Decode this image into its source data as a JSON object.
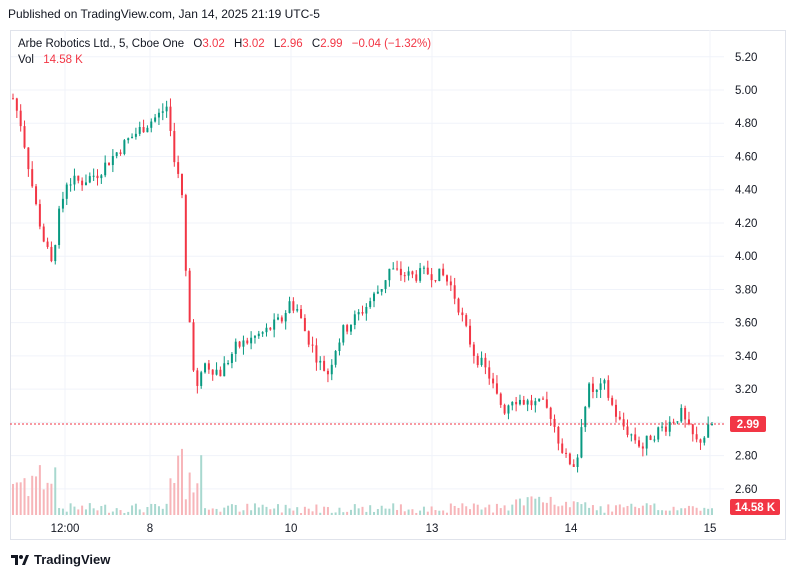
{
  "header": {
    "published": "Published on TradingView.com, Jan 14, 2025 21:19 UTC-5"
  },
  "legend": {
    "symbol": "Arbe Robotics Ltd., 5, Cboe One",
    "o_label": "O",
    "o_value": "3.02",
    "h_label": "H",
    "h_value": "3.02",
    "l_label": "L",
    "l_value": "2.96",
    "c_label": "C",
    "c_value": "2.99",
    "change": "−0.04 (−1.32%)",
    "vol_label": "Vol",
    "vol_value": "14.58 K"
  },
  "price_tag": "2.99",
  "volume_tag": "14.58 K",
  "footer": {
    "brand": "TradingView"
  },
  "colors": {
    "up": "#089981",
    "down": "#f23645",
    "vol_up": "#a8d8cf",
    "vol_down": "#f7b5b9",
    "grid": "#f0f3fa"
  },
  "chart_data": {
    "type": "candlestick",
    "y_ticks": [
      "5.20",
      "5.00",
      "4.80",
      "4.60",
      "4.40",
      "4.20",
      "4.00",
      "3.80",
      "3.60",
      "3.40",
      "3.20",
      "3.00",
      "2.80",
      "2.60"
    ],
    "ylim": [
      2.5,
      5.3
    ],
    "x_ticks": [
      "12:00",
      "8",
      "10",
      "13",
      "14",
      "15"
    ],
    "last_price": 2.99,
    "last_volume": "14.58 K",
    "price_path": [
      [
        0,
        4.95
      ],
      [
        2,
        4.8
      ],
      [
        4,
        4.55
      ],
      [
        6,
        4.3
      ],
      [
        8,
        4.1
      ],
      [
        10,
        3.95
      ],
      [
        12,
        4.25
      ],
      [
        14,
        4.45
      ],
      [
        18,
        4.45
      ],
      [
        22,
        4.5
      ],
      [
        26,
        4.6
      ],
      [
        30,
        4.7
      ],
      [
        34,
        4.78
      ],
      [
        38,
        4.85
      ],
      [
        40,
        4.9
      ],
      [
        42,
        4.6
      ],
      [
        44,
        4.35
      ],
      [
        45,
        3.9
      ],
      [
        46,
        3.6
      ],
      [
        47,
        3.35
      ],
      [
        48,
        3.2
      ],
      [
        50,
        3.35
      ],
      [
        54,
        3.3
      ],
      [
        58,
        3.45
      ],
      [
        62,
        3.5
      ],
      [
        66,
        3.55
      ],
      [
        70,
        3.62
      ],
      [
        72,
        3.72
      ],
      [
        74,
        3.68
      ],
      [
        76,
        3.55
      ],
      [
        78,
        3.45
      ],
      [
        80,
        3.35
      ],
      [
        82,
        3.3
      ],
      [
        84,
        3.45
      ],
      [
        86,
        3.55
      ],
      [
        88,
        3.6
      ],
      [
        92,
        3.7
      ],
      [
        96,
        3.82
      ],
      [
        98,
        3.92
      ],
      [
        100,
        3.9
      ],
      [
        104,
        3.88
      ],
      [
        108,
        3.9
      ],
      [
        112,
        3.88
      ],
      [
        114,
        3.82
      ],
      [
        116,
        3.7
      ],
      [
        118,
        3.55
      ],
      [
        120,
        3.42
      ],
      [
        122,
        3.35
      ],
      [
        124,
        3.28
      ],
      [
        126,
        3.15
      ],
      [
        128,
        3.08
      ],
      [
        130,
        3.15
      ],
      [
        134,
        3.12
      ],
      [
        138,
        3.1
      ],
      [
        140,
        3.05
      ],
      [
        142,
        2.9
      ],
      [
        144,
        2.78
      ],
      [
        146,
        2.75
      ],
      [
        147,
        2.8
      ],
      [
        148,
        3.0
      ],
      [
        150,
        3.2
      ],
      [
        152,
        3.18
      ],
      [
        154,
        3.22
      ],
      [
        156,
        3.1
      ],
      [
        158,
        3.0
      ],
      [
        160,
        2.95
      ],
      [
        162,
        2.9
      ],
      [
        164,
        2.85
      ],
      [
        166,
        2.92
      ],
      [
        170,
        2.98
      ],
      [
        172,
        3.02
      ],
      [
        174,
        3.05
      ],
      [
        176,
        2.95
      ],
      [
        178,
        2.88
      ],
      [
        180,
        2.92
      ],
      [
        182,
        2.99
      ]
    ]
  }
}
